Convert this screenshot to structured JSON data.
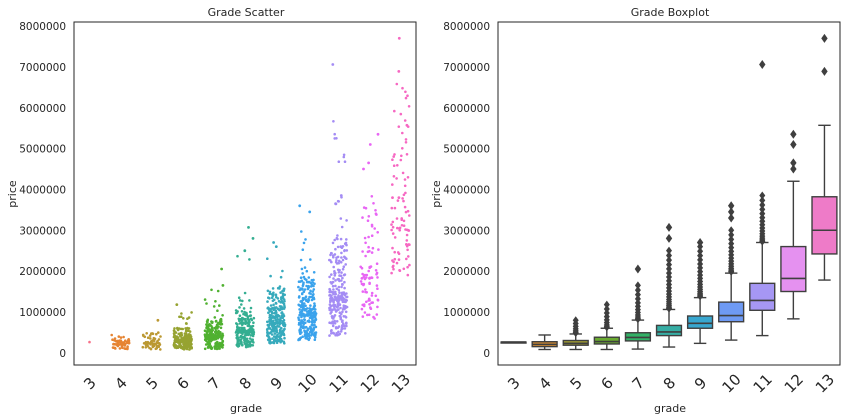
{
  "chart_data": [
    {
      "type": "scatter",
      "title": "Grade Scatter",
      "xlabel": "grade",
      "ylabel": "price",
      "categories": [
        "3",
        "4",
        "5",
        "6",
        "7",
        "8",
        "9",
        "10",
        "11",
        "12",
        "13"
      ],
      "yticks": [
        "0",
        "1000000",
        "2000000",
        "3000000",
        "4000000",
        "5000000",
        "6000000",
        "7000000",
        "8000000"
      ],
      "ylim": [
        -300000,
        8100000
      ],
      "grid": false,
      "series": [
        {
          "category": "3",
          "color": "#f77189",
          "min": 262000,
          "max": 262000,
          "median": 262000,
          "outliers": []
        },
        {
          "category": "4",
          "color": "#e68432",
          "min": 80000,
          "max": 435000,
          "median": 205000,
          "outliers": []
        },
        {
          "category": "5",
          "color": "#bb9832",
          "min": 80000,
          "max": 800000,
          "median": 230000,
          "outliers": [
            795000
          ]
        },
        {
          "category": "6",
          "color": "#96a331",
          "min": 80000,
          "max": 1200000,
          "median": 275000,
          "outliers": [
            1180000
          ]
        },
        {
          "category": "7",
          "color": "#50b131",
          "min": 90000,
          "max": 2050000,
          "median": 375000,
          "outliers": [
            2050000,
            1650000
          ]
        },
        {
          "category": "8",
          "color": "#34ae91",
          "min": 140000,
          "max": 3070000,
          "median": 510000,
          "outliers": [
            3070000,
            2800000,
            2500000
          ]
        },
        {
          "category": "9",
          "color": "#37aabc",
          "min": 230000,
          "max": 2700000,
          "median": 720000,
          "outliers": [
            2700000,
            2600000
          ]
        },
        {
          "category": "10",
          "color": "#3ba3ec",
          "min": 310000,
          "max": 3600000,
          "median": 910000,
          "outliers": [
            3600000,
            3450000
          ]
        },
        {
          "category": "11",
          "color": "#a48cf4",
          "min": 420000,
          "max": 7060000,
          "median": 1280000,
          "outliers": [
            7060000,
            3850000,
            3650000
          ]
        },
        {
          "category": "12",
          "color": "#e866f4",
          "min": 830000,
          "max": 5350000,
          "median": 1820000,
          "outliers": [
            5350000,
            5100000,
            4650000,
            4500000
          ]
        },
        {
          "category": "13",
          "color": "#f668c2",
          "min": 1780000,
          "max": 7700000,
          "median": 3000000,
          "outliers": [
            7700000,
            6890000,
            5570000,
            3800000,
            3800000
          ]
        }
      ]
    },
    {
      "type": "box",
      "title": "Grade Boxplot",
      "xlabel": "grade",
      "ylabel": "price",
      "categories": [
        "3",
        "4",
        "5",
        "6",
        "7",
        "8",
        "9",
        "10",
        "11",
        "12",
        "13"
      ],
      "yticks": [
        "0",
        "1000000",
        "2000000",
        "3000000",
        "4000000",
        "5000000",
        "6000000",
        "7000000",
        "8000000"
      ],
      "ylim": [
        -300000,
        8100000
      ],
      "grid": false,
      "boxes": [
        {
          "category": "3",
          "color": "#f77189",
          "whisker_low": 262000,
          "q1": 262000,
          "median": 262000,
          "q3": 262000,
          "whisker_high": 262000,
          "fliers_from": 0,
          "fliers_to": 0,
          "extreme_fliers": []
        },
        {
          "category": "4",
          "color": "#d58c32",
          "whisker_low": 80000,
          "q1": 150000,
          "median": 205000,
          "q3": 270000,
          "whisker_high": 435000,
          "fliers_from": 0,
          "fliers_to": 0,
          "extreme_fliers": []
        },
        {
          "category": "5",
          "color": "#a4a031",
          "whisker_low": 80000,
          "q1": 185000,
          "median": 230000,
          "q3": 300000,
          "whisker_high": 460000,
          "fliers_from": 480000,
          "fliers_to": 795000,
          "extreme_fliers": []
        },
        {
          "category": "6",
          "color": "#6aab31",
          "whisker_low": 80000,
          "q1": 215000,
          "median": 275000,
          "q3": 380000,
          "whisker_high": 600000,
          "fliers_from": 620000,
          "fliers_to": 1180000,
          "extreme_fliers": []
        },
        {
          "category": "7",
          "color": "#32b166",
          "whisker_low": 90000,
          "q1": 290000,
          "median": 375000,
          "q3": 490000,
          "whisker_high": 800000,
          "fliers_from": 820000,
          "fliers_to": 1650000,
          "extreme_fliers": [
            2050000
          ]
        },
        {
          "category": "8",
          "color": "#36ada4",
          "whisker_low": 140000,
          "q1": 420000,
          "median": 510000,
          "q3": 670000,
          "whisker_high": 1060000,
          "fliers_from": 1080000,
          "fliers_to": 2500000,
          "extreme_fliers": [
            2800000,
            3070000
          ]
        },
        {
          "category": "9",
          "color": "#38a7d0",
          "whisker_low": 230000,
          "q1": 600000,
          "median": 720000,
          "q3": 900000,
          "whisker_high": 1350000,
          "fliers_from": 1380000,
          "fliers_to": 2600000,
          "extreme_fliers": [
            2700000
          ]
        },
        {
          "category": "10",
          "color": "#6e9af4",
          "whisker_low": 310000,
          "q1": 760000,
          "median": 910000,
          "q3": 1240000,
          "whisker_high": 1950000,
          "fliers_from": 1980000,
          "fliers_to": 3000000,
          "extreme_fliers": [
            3300000,
            3450000,
            3600000
          ]
        },
        {
          "category": "11",
          "color": "#a697f4",
          "whisker_low": 420000,
          "q1": 1040000,
          "median": 1280000,
          "q3": 1700000,
          "whisker_high": 2700000,
          "fliers_from": 2720000,
          "fliers_to": 3850000,
          "extreme_fliers": [
            7060000
          ]
        },
        {
          "category": "12",
          "color": "#e591f0",
          "whisker_low": 830000,
          "q1": 1500000,
          "median": 1820000,
          "q3": 2600000,
          "whisker_high": 4200000,
          "fliers_from": 0,
          "fliers_to": 0,
          "extreme_fliers": [
            4500000,
            4650000,
            5100000,
            5350000
          ]
        },
        {
          "category": "13",
          "color": "#ee7bc8",
          "whisker_low": 1780000,
          "q1": 2420000,
          "median": 3000000,
          "q3": 3820000,
          "whisker_high": 5570000,
          "fliers_from": 0,
          "fliers_to": 0,
          "extreme_fliers": [
            6890000,
            7700000
          ]
        }
      ]
    }
  ]
}
